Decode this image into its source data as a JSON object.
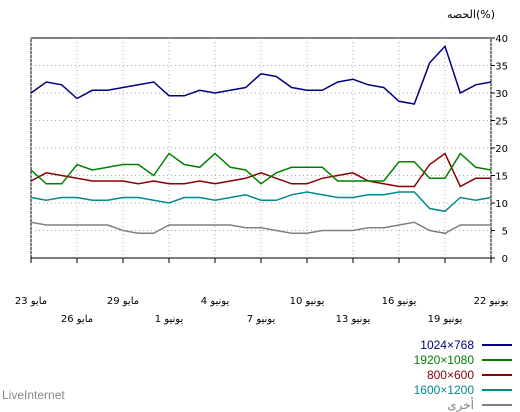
{
  "chart_data": {
    "type": "line",
    "ylabel": "الحصه(%)",
    "ylim": [
      0,
      40
    ],
    "yticks": [
      0,
      5,
      10,
      15,
      20,
      25,
      30,
      35,
      40
    ],
    "x_order": "right-to-left",
    "x_labels_upper": [
      "22 يونيو",
      "16 يونيو",
      "10 يونيو",
      "4 يونيو",
      "29 مايو",
      "23 مايو"
    ],
    "x_labels_lower": [
      "19 يونيو",
      "13 يونيو",
      "7 يونيو",
      "1 يونيو",
      "26 مايو"
    ],
    "x_upper_index": [
      0,
      6,
      12,
      18,
      24,
      30
    ],
    "x_lower_index": [
      3,
      9,
      15,
      21,
      27
    ],
    "grid": true,
    "legend_position": "bottom-right",
    "series": [
      {
        "name": "1024×768",
        "color": "#000080",
        "values": [
          32,
          31.5,
          30,
          38.5,
          35.5,
          28,
          28.5,
          31,
          31.5,
          32.5,
          32,
          30.5,
          30.5,
          31,
          33,
          33.5,
          31,
          30.5,
          30,
          30.5,
          29.5,
          29.5,
          32,
          31.5,
          31,
          30.5,
          30.5,
          29,
          31.5,
          32,
          30
        ]
      },
      {
        "name": "1920×1080",
        "color": "#008000",
        "values": [
          16,
          16.5,
          19,
          14.5,
          14.5,
          17.5,
          17.5,
          14,
          14,
          14,
          14,
          16.5,
          16.5,
          16.5,
          15.5,
          13.5,
          16,
          16.5,
          19,
          16.5,
          17,
          19,
          15,
          17,
          17,
          16.5,
          16,
          17,
          13.5,
          13.5,
          16
        ]
      },
      {
        "name": "800×600",
        "color": "#8b0000",
        "values": [
          14.5,
          14.5,
          13,
          19,
          17,
          13,
          13,
          13.5,
          14,
          15.5,
          15,
          14.5,
          13.5,
          13.5,
          14.5,
          15.5,
          14.5,
          14,
          13.5,
          14,
          13.5,
          13.5,
          14,
          13.5,
          14,
          14,
          14,
          14.5,
          15,
          15.5,
          14
        ]
      },
      {
        "name": "1600×1200",
        "color": "#008b8b",
        "values": [
          11,
          10.5,
          11,
          8.5,
          9,
          12,
          12,
          11.5,
          11.5,
          11,
          11,
          11.5,
          12,
          11.5,
          10.5,
          10.5,
          11.5,
          11,
          10.5,
          11,
          11,
          10,
          10.5,
          11,
          11,
          10.5,
          10.5,
          11,
          11,
          10.5,
          11
        ]
      },
      {
        "name": "أخرى",
        "color": "#808080",
        "values": [
          6,
          6,
          6,
          4.5,
          5,
          6.5,
          6,
          5.5,
          5.5,
          5,
          5,
          5,
          4.5,
          4.5,
          5,
          5.5,
          5.5,
          6,
          6,
          6,
          6,
          6,
          4.5,
          4.5,
          5,
          6,
          6,
          6,
          6,
          6,
          6.5
        ]
      }
    ]
  },
  "brand": "LiveInternet"
}
